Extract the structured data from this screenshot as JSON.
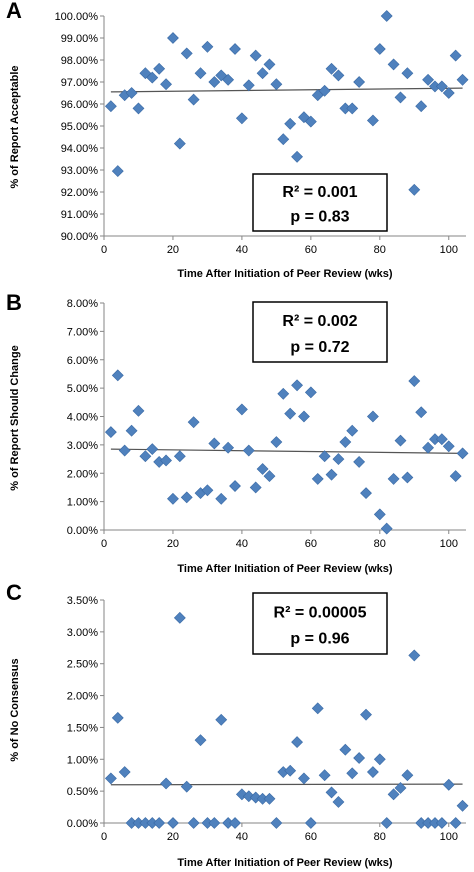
{
  "colors": {
    "marker": "#4f81bd",
    "marker_stroke": "#3a6aa5",
    "trend": "#555555",
    "axis": "#868686"
  },
  "chart_data": [
    {
      "type": "scatter",
      "panel_label": "A",
      "xlabel": "Time After Initiation of Peer Review (wks)",
      "ylabel": "% of Report Acceptable",
      "xlim": [
        0,
        105
      ],
      "ylim": [
        90,
        100
      ],
      "xticks": [
        "0",
        "20",
        "40",
        "60",
        "80",
        "100"
      ],
      "yticks": [
        "90.00%",
        "91.00%",
        "92.00%",
        "93.00%",
        "94.00%",
        "95.00%",
        "96.00%",
        "97.00%",
        "98.00%",
        "99.00%",
        "100.00%"
      ],
      "stats": {
        "r2": "R² = 0.001",
        "p": "p = 0.83"
      },
      "trendline": {
        "x": [
          2,
          104
        ],
        "y": [
          96.55,
          96.72
        ]
      },
      "points": [
        [
          2,
          95.9
        ],
        [
          4,
          92.95
        ],
        [
          6,
          96.4
        ],
        [
          8,
          96.5
        ],
        [
          10,
          95.8
        ],
        [
          12,
          97.4
        ],
        [
          14,
          97.2
        ],
        [
          16,
          97.6
        ],
        [
          18,
          96.9
        ],
        [
          20,
          99.0
        ],
        [
          22,
          94.2
        ],
        [
          24,
          98.3
        ],
        [
          26,
          96.2
        ],
        [
          28,
          97.4
        ],
        [
          30,
          98.6
        ],
        [
          32,
          97.0
        ],
        [
          34,
          97.3
        ],
        [
          36,
          97.1
        ],
        [
          38,
          98.5
        ],
        [
          40,
          95.35
        ],
        [
          42,
          96.85
        ],
        [
          44,
          98.2
        ],
        [
          46,
          97.4
        ],
        [
          48,
          97.8
        ],
        [
          50,
          96.9
        ],
        [
          52,
          94.4
        ],
        [
          54,
          95.1
        ],
        [
          56,
          93.6
        ],
        [
          58,
          95.4
        ],
        [
          60,
          95.2
        ],
        [
          62,
          96.4
        ],
        [
          64,
          96.6
        ],
        [
          66,
          97.6
        ],
        [
          68,
          97.3
        ],
        [
          70,
          95.8
        ],
        [
          72,
          95.8
        ],
        [
          74,
          97.0
        ],
        [
          78,
          95.25
        ],
        [
          80,
          98.5
        ],
        [
          82,
          100.0
        ],
        [
          84,
          97.8
        ],
        [
          86,
          96.3
        ],
        [
          88,
          97.4
        ],
        [
          90,
          92.1
        ],
        [
          92,
          95.9
        ],
        [
          94,
          97.1
        ],
        [
          96,
          96.8
        ],
        [
          98,
          96.8
        ],
        [
          100,
          96.5
        ],
        [
          102,
          98.2
        ],
        [
          104,
          97.1
        ]
      ]
    },
    {
      "type": "scatter",
      "panel_label": "B",
      "xlabel": "Time After Initiation of Peer Review (wks)",
      "ylabel": "% of Report Should Change",
      "xlim": [
        0,
        105
      ],
      "ylim": [
        0,
        8
      ],
      "xticks": [
        "0",
        "20",
        "40",
        "60",
        "80",
        "100"
      ],
      "yticks": [
        "0.00%",
        "1.00%",
        "2.00%",
        "3.00%",
        "4.00%",
        "5.00%",
        "6.00%",
        "7.00%",
        "8.00%"
      ],
      "stats": {
        "r2": "R² = 0.002",
        "p": "p = 0.72"
      },
      "trendline": {
        "x": [
          2,
          104
        ],
        "y": [
          2.85,
          2.7
        ]
      },
      "points": [
        [
          2,
          3.45
        ],
        [
          4,
          5.45
        ],
        [
          6,
          2.8
        ],
        [
          8,
          3.5
        ],
        [
          10,
          4.2
        ],
        [
          12,
          2.6
        ],
        [
          14,
          2.85
        ],
        [
          16,
          2.4
        ],
        [
          18,
          2.45
        ],
        [
          20,
          1.1
        ],
        [
          22,
          2.6
        ],
        [
          24,
          1.15
        ],
        [
          26,
          3.8
        ],
        [
          28,
          1.3
        ],
        [
          30,
          1.4
        ],
        [
          32,
          3.05
        ],
        [
          34,
          1.1
        ],
        [
          36,
          2.9
        ],
        [
          38,
          1.55
        ],
        [
          40,
          4.25
        ],
        [
          42,
          2.8
        ],
        [
          44,
          1.5
        ],
        [
          46,
          2.15
        ],
        [
          48,
          1.9
        ],
        [
          50,
          3.1
        ],
        [
          52,
          4.8
        ],
        [
          54,
          4.1
        ],
        [
          56,
          5.1
        ],
        [
          58,
          4.0
        ],
        [
          60,
          4.85
        ],
        [
          62,
          1.8
        ],
        [
          64,
          2.6
        ],
        [
          66,
          1.95
        ],
        [
          68,
          2.5
        ],
        [
          70,
          3.1
        ],
        [
          72,
          3.5
        ],
        [
          74,
          2.4
        ],
        [
          76,
          1.3
        ],
        [
          78,
          4.0
        ],
        [
          80,
          0.55
        ],
        [
          82,
          0.05
        ],
        [
          84,
          1.8
        ],
        [
          86,
          3.15
        ],
        [
          88,
          1.85
        ],
        [
          90,
          5.25
        ],
        [
          92,
          4.15
        ],
        [
          94,
          2.9
        ],
        [
          96,
          3.2
        ],
        [
          98,
          3.2
        ],
        [
          100,
          2.95
        ],
        [
          102,
          1.9
        ],
        [
          104,
          2.7
        ]
      ]
    },
    {
      "type": "scatter",
      "panel_label": "C",
      "xlabel": "Time After Initiation of Peer Review (wks)",
      "ylabel": "% of No Consensus",
      "xlim": [
        0,
        105
      ],
      "ylim": [
        0,
        3.5
      ],
      "xticks": [
        "0",
        "20",
        "40",
        "60",
        "80",
        "100"
      ],
      "yticks": [
        "0.00%",
        "0.50%",
        "1.00%",
        "1.50%",
        "2.00%",
        "2.50%",
        "3.00%",
        "3.50%"
      ],
      "stats": {
        "r2": "R² = 0.00005",
        "p": "p = 0.96"
      },
      "trendline": {
        "x": [
          2,
          104
        ],
        "y": [
          0.6,
          0.61
        ]
      },
      "points": [
        [
          2,
          0.7
        ],
        [
          4,
          1.65
        ],
        [
          6,
          0.8
        ],
        [
          8,
          0.0
        ],
        [
          10,
          0.0
        ],
        [
          12,
          0.0
        ],
        [
          14,
          0.0
        ],
        [
          16,
          0.0
        ],
        [
          18,
          0.62
        ],
        [
          20,
          0.0
        ],
        [
          22,
          3.22
        ],
        [
          24,
          0.57
        ],
        [
          26,
          0.0
        ],
        [
          28,
          1.3
        ],
        [
          30,
          0.0
        ],
        [
          32,
          0.0
        ],
        [
          34,
          1.62
        ],
        [
          36,
          0.0
        ],
        [
          38,
          0.0
        ],
        [
          40,
          0.45
        ],
        [
          42,
          0.42
        ],
        [
          44,
          0.4
        ],
        [
          46,
          0.38
        ],
        [
          48,
          0.38
        ],
        [
          50,
          0.0
        ],
        [
          52,
          0.8
        ],
        [
          54,
          0.82
        ],
        [
          56,
          1.27
        ],
        [
          58,
          0.7
        ],
        [
          60,
          0.0
        ],
        [
          62,
          1.8
        ],
        [
          64,
          0.75
        ],
        [
          66,
          0.48
        ],
        [
          68,
          0.33
        ],
        [
          70,
          1.15
        ],
        [
          72,
          0.78
        ],
        [
          74,
          1.02
        ],
        [
          76,
          1.7
        ],
        [
          78,
          0.8
        ],
        [
          80,
          1.0
        ],
        [
          82,
          0.0
        ],
        [
          84,
          0.45
        ],
        [
          86,
          0.55
        ],
        [
          88,
          0.75
        ],
        [
          90,
          2.63
        ],
        [
          92,
          0.0
        ],
        [
          94,
          0.0
        ],
        [
          96,
          0.0
        ],
        [
          98,
          0.0
        ],
        [
          100,
          0.6
        ],
        [
          102,
          0.0
        ],
        [
          104,
          0.27
        ]
      ]
    }
  ]
}
